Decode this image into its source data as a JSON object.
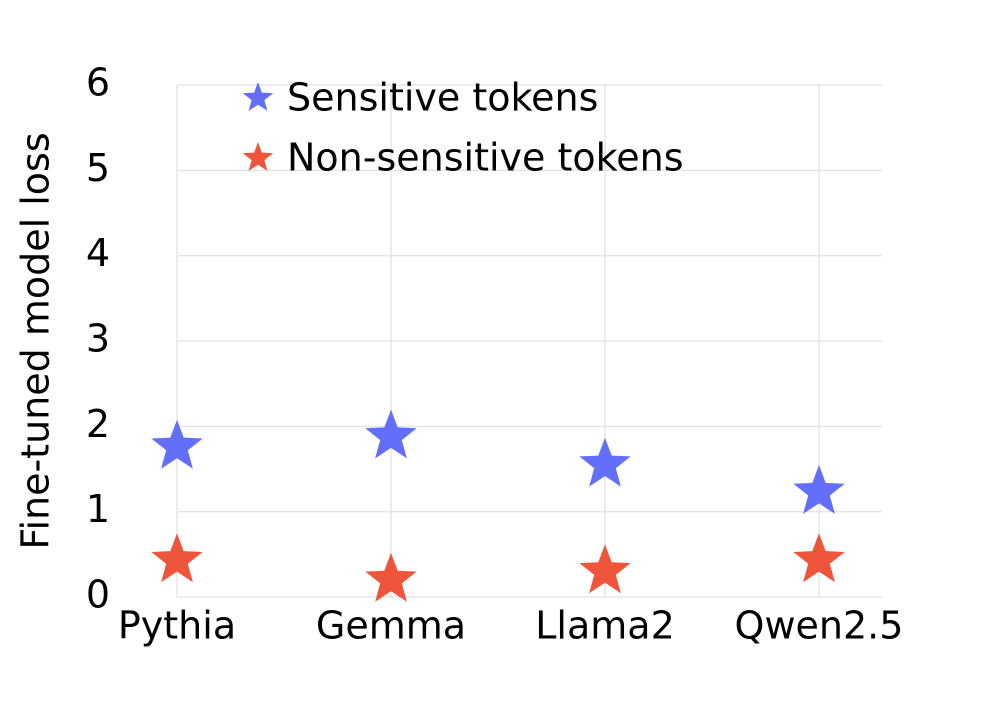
{
  "chart_data": {
    "type": "scatter",
    "marker": "star",
    "y_label": "Fine-tuned model loss",
    "categories": [
      "Pythia",
      "Gemma",
      "Llama2",
      "Qwen2.5"
    ],
    "series": [
      {
        "name": "Sensitive tokens",
        "color": "#636efa",
        "values": [
          1.76,
          1.88,
          1.55,
          1.23
        ]
      },
      {
        "name": "Non-sensitive tokens",
        "color": "#ef553b",
        "values": [
          0.43,
          0.2,
          0.3,
          0.43
        ]
      }
    ],
    "ylim": [
      0,
      6
    ],
    "yticks": [
      0,
      1,
      2,
      3,
      4,
      5,
      6
    ],
    "grid": true,
    "legend": "top-left"
  }
}
